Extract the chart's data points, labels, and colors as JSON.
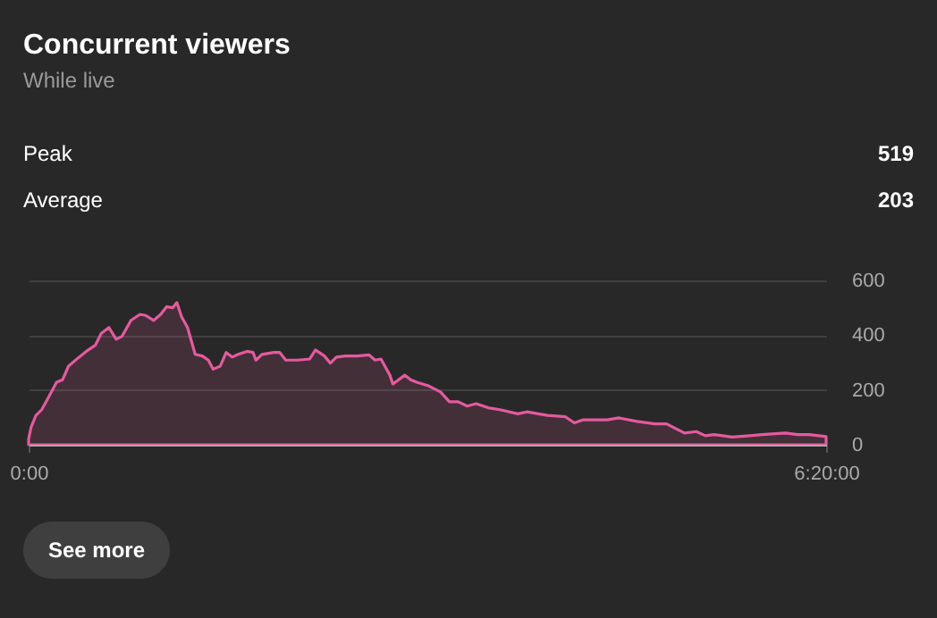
{
  "chart_data": {
    "type": "area",
    "title": "Concurrent viewers",
    "subtitle": "While live",
    "x": [
      0,
      0.019,
      0.057,
      0.104,
      0.151,
      0.222,
      0.269,
      0.317,
      0.388,
      0.458,
      0.529,
      0.577,
      0.638,
      0.695,
      0.742,
      0.813,
      0.884,
      0.931,
      0.993,
      1.049,
      1.096,
      1.144,
      1.177,
      1.215,
      1.262,
      1.323,
      1.38,
      1.427,
      1.465,
      1.522,
      1.569,
      1.616,
      1.664,
      1.735,
      1.782,
      1.805,
      1.853,
      1.947,
      1.995,
      2.042,
      2.136,
      2.231,
      2.278,
      2.349,
      2.396,
      2.444,
      2.514,
      2.609,
      2.704,
      2.751,
      2.798,
      2.869,
      2.893,
      2.987,
      3.034,
      3.082,
      3.176,
      3.271,
      3.342,
      3.412,
      3.483,
      3.554,
      3.649,
      3.743,
      3.885,
      3.956,
      4.121,
      4.263,
      4.334,
      4.405,
      4.594,
      4.689,
      4.831,
      4.972,
      5.067,
      5.138,
      5.208,
      5.303,
      5.374,
      5.445,
      5.587,
      5.728,
      5.823,
      6.012,
      6.106,
      6.201,
      6.3333333
    ],
    "series": [
      {
        "color": "#e55a9e",
        "values": [
          20,
          63,
          106,
          128,
          167,
          228,
          237,
          287,
          315,
          341,
          363,
          407,
          428,
          385,
          396,
          454,
          476,
          472,
          454,
          476,
          504,
          500,
          519,
          467,
          428,
          330,
          324,
          309,
          276,
          287,
          337,
          320,
          330,
          341,
          337,
          309,
          330,
          337,
          337,
          309,
          309,
          313,
          346,
          324,
          298,
          320,
          324,
          324,
          328,
          309,
          313,
          254,
          222,
          254,
          237,
          228,
          215,
          193,
          157,
          157,
          141,
          150,
          135,
          128,
          113,
          120,
          107,
          102,
          80,
          91,
          91,
          98,
          85,
          76,
          76,
          59,
          43,
          48,
          33,
          37,
          28,
          33,
          37,
          43,
          37,
          37,
          30
        ]
      }
    ],
    "xlim": [
      0,
      6.3333333
    ],
    "xticks": [
      {
        "value": 0,
        "label": "0:00"
      },
      {
        "value": 6.3333333,
        "label": "6:20:00"
      }
    ],
    "ylim": [
      0,
      600
    ],
    "yticks": [
      0,
      200,
      400,
      600
    ],
    "grid": "y",
    "annotations": [
      "Peak",
      "519",
      "Average",
      "203",
      "See more"
    ]
  }
}
